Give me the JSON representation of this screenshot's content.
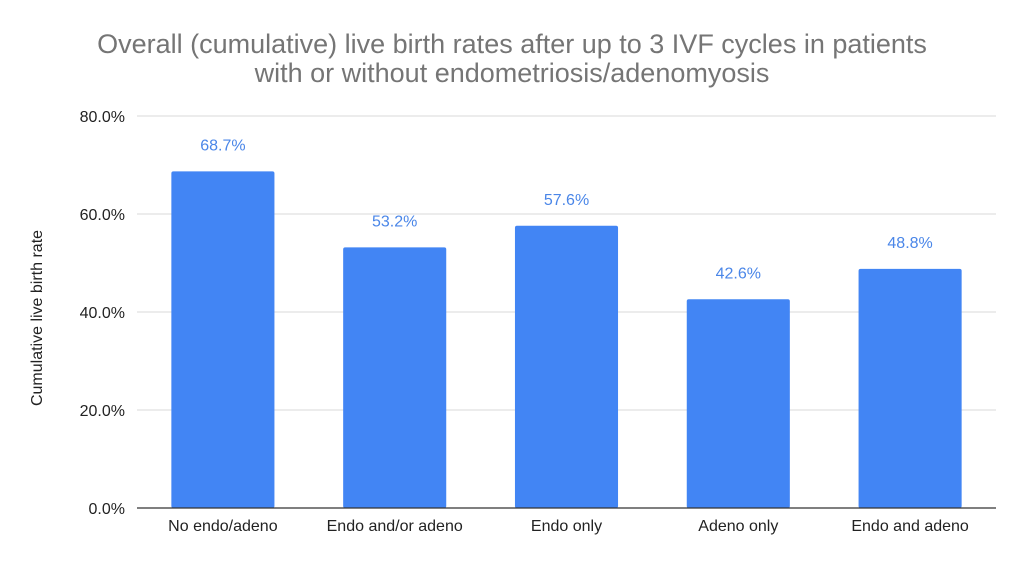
{
  "chart_data": {
    "type": "bar",
    "title_lines": [
      "Overall (cumulative) live birth rates after up to 3 IVF cycles in patients",
      "with or without endometriosis/adenomyosis"
    ],
    "xlabel": "",
    "ylabel": "Cumulative live birth rate",
    "categories": [
      "No endo/adeno",
      "Endo and/or adeno",
      "Endo only",
      "Adeno only",
      "Endo and adeno"
    ],
    "values": [
      68.7,
      53.2,
      57.6,
      42.6,
      48.8
    ],
    "data_labels": [
      "68.7%",
      "53.2%",
      "57.6%",
      "42.6%",
      "48.8%"
    ],
    "ylim": [
      0,
      80
    ],
    "yticks": [
      0,
      20,
      40,
      60,
      80
    ],
    "ytick_labels": [
      "0.0%",
      "20.0%",
      "40.0%",
      "60.0%",
      "80.0%"
    ],
    "grid": true,
    "legend": "none",
    "bar_color": "#4285f4",
    "label_color": "#4a86e8"
  }
}
